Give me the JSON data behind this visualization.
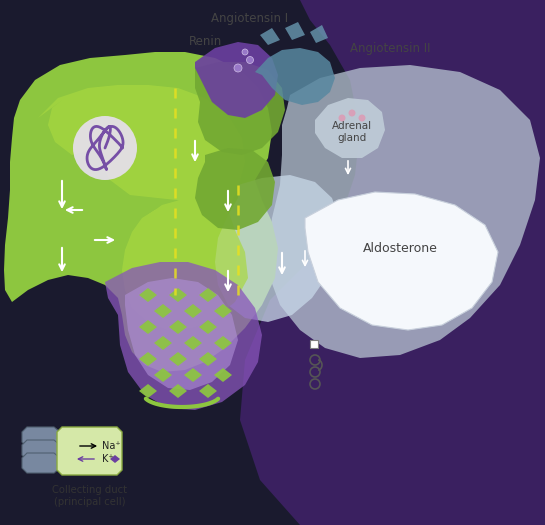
{
  "bg_color": "#1a1a2e",
  "green_bright": "#8dc63f",
  "green_mid": "#72a832",
  "green_dark": "#5a8a20",
  "green_inner": "#a8d848",
  "purple_dark": "#6b3fa0",
  "purple_mid": "#8855bb",
  "purple_light": "#9b6fc8",
  "purple_collect": "#7a50b8",
  "purple_collect_light": "#a882d8",
  "blue_gray_dark": "#7a8fa8",
  "blue_gray_mid": "#a0b5c8",
  "blue_gray_light": "#c5d5e5",
  "gray_adrenal": "#b0bcc8",
  "yellow": "#e8e020",
  "white": "#ffffff",
  "text_dark": "#2a2a2a",
  "text_medium": "#444444",
  "text_blue": "#4878b0",
  "legend_green": "#d5e8a8",
  "legend_blue": "#7888a0",
  "label_angiotensin_I": "Angiotensin I",
  "label_renin": "Renin",
  "label_angiotensin_II": "Angiotensin II",
  "label_adrenal": "Adrenal\ngland",
  "label_aldosterone": "Aldosterone",
  "label_na": "Na⁺",
  "label_k": "K⁺",
  "label_collecting": "Collecting duct\n(principal cell)"
}
